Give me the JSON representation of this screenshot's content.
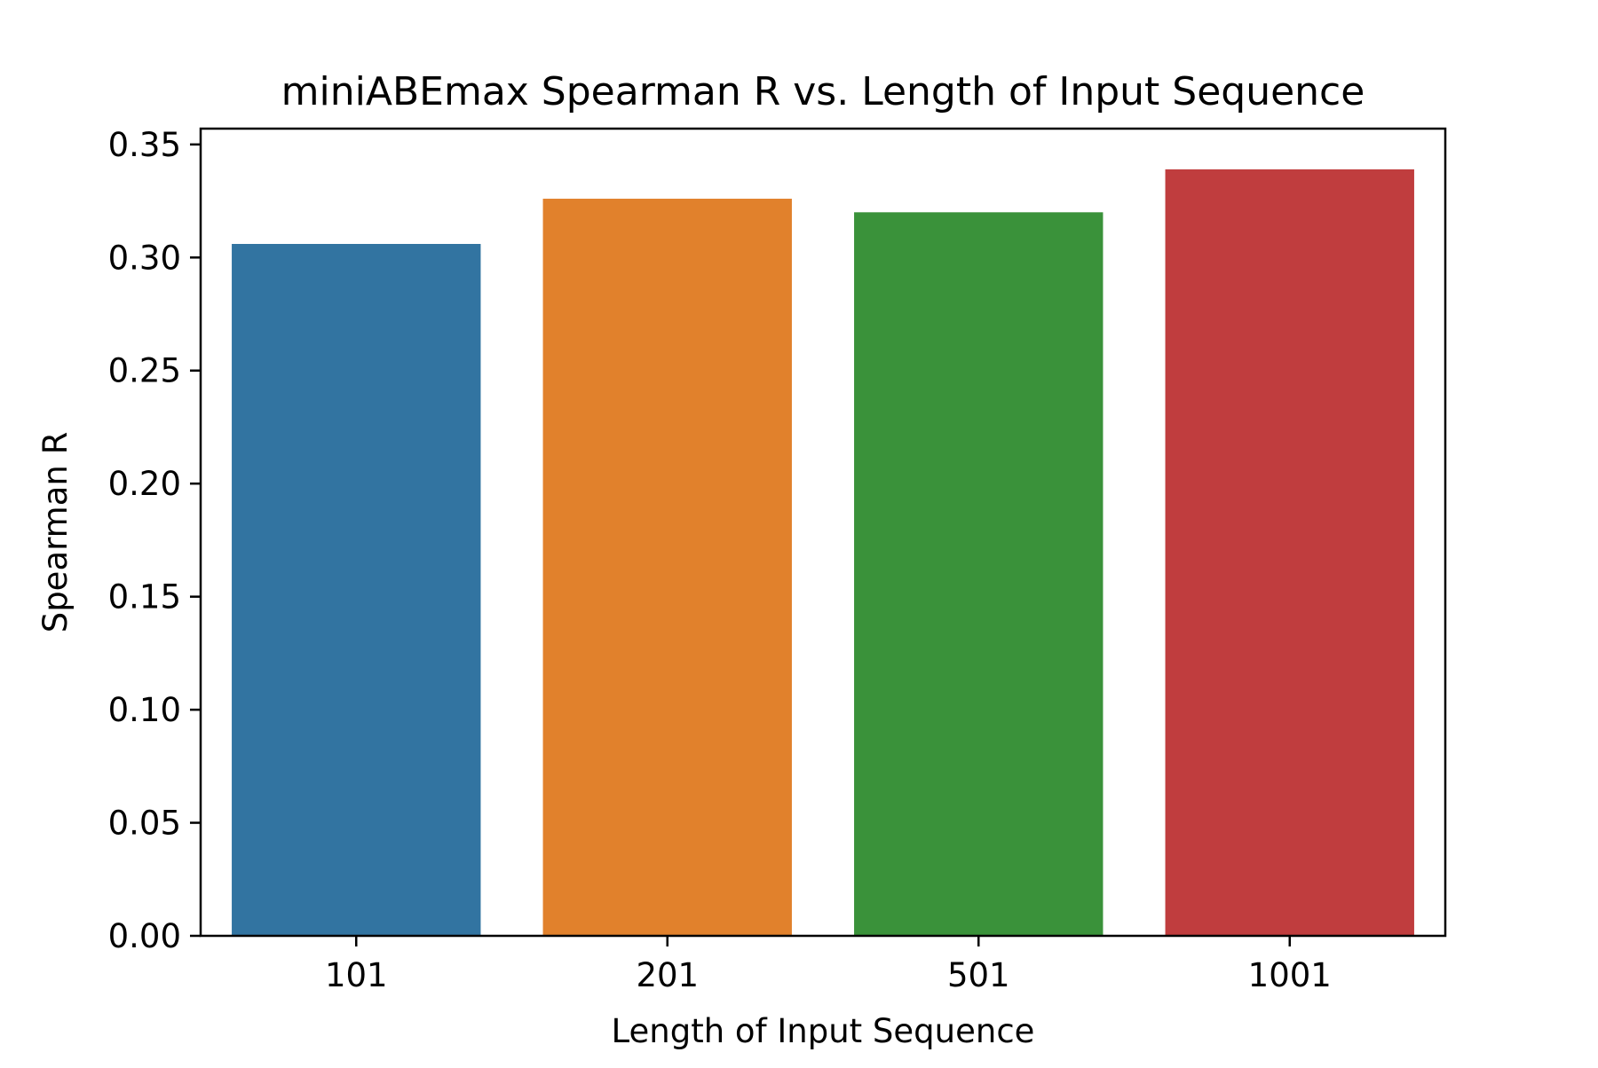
{
  "chart_data": {
    "type": "bar",
    "title": "miniABEmax Spearman R vs. Length of Input Sequence",
    "xlabel": "Length of Input Sequence",
    "ylabel": "Spearman R",
    "categories": [
      "101",
      "201",
      "501",
      "1001"
    ],
    "values": [
      0.306,
      0.326,
      0.32,
      0.339
    ],
    "colors": [
      "#3274a1",
      "#e1812c",
      "#3a923a",
      "#c03d3e"
    ],
    "ylim": [
      0,
      0.357
    ],
    "yticks": [
      0.0,
      0.05,
      0.1,
      0.15,
      0.2,
      0.25,
      0.3,
      0.35
    ],
    "ytick_labels": [
      "0.00",
      "0.05",
      "0.10",
      "0.15",
      "0.20",
      "0.25",
      "0.30",
      "0.35"
    ],
    "grid": false,
    "legend": "none"
  }
}
